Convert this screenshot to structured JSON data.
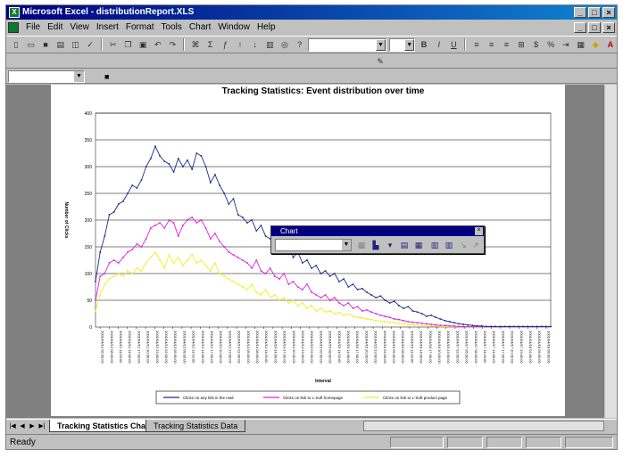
{
  "window": {
    "title": "Microsoft Excel - distributionReport.XLS",
    "controls": [
      "_",
      "□",
      "×"
    ]
  },
  "menu": {
    "items": [
      "File",
      "Edit",
      "View",
      "Insert",
      "Format",
      "Tools",
      "Chart",
      "Window",
      "Help"
    ],
    "doc_controls": [
      "_",
      "□",
      "×"
    ]
  },
  "chart_data": {
    "type": "line",
    "title": "Tracking Statistics: Event distribution over time",
    "xlabel": "Interval",
    "ylabel": "Number of Clicks",
    "ylim": [
      0,
      400
    ],
    "yticks": [
      0,
      50,
      100,
      150,
      200,
      250,
      300,
      350,
      400
    ],
    "grid": true,
    "legend_position": "bottom",
    "x_tick_labels": [
      "2001/04/12 05:00:00",
      "2001/04/12 08:00:00",
      "2001/04/12 11:00:00",
      "2001/04/12 14:00:00",
      "2001/04/12 17:00:00",
      "2001/04/12 20:00:00",
      "2001/04/12 23:00:00",
      "2001/04/13 02:00:00",
      "2001/04/13 05:00:00",
      "2001/04/13 08:00:00",
      "2001/04/13 11:00:00",
      "2001/04/13 14:00:00",
      "2001/04/13 17:00:00",
      "2001/04/13 20:00:00",
      "2001/04/13 23:00:00",
      "2001/04/14 02:00:00",
      "2001/04/14 05:00:00",
      "2001/04/14 08:00:00",
      "2001/04/14 11:00:00",
      "2001/04/14 14:00:00",
      "2001/04/14 17:00:00",
      "2001/04/14 20:00:00",
      "2001/04/14 23:00:00",
      "2001/04/15 02:00:00",
      "2001/04/15 05:00:00",
      "2001/04/15 08:00:00",
      "2001/04/15 11:00:00",
      "2001/04/15 14:00:00",
      "2001/04/15 17:00:00",
      "2001/04/15 20:00:00",
      "2001/04/15 23:00:00",
      "2001/04/16 02:00:00",
      "2001/04/16 05:00:00",
      "2001/04/16 08:00:00",
      "2001/04/16 11:00:00",
      "2001/04/16 14:00:00",
      "2001/04/16 17:00:00",
      "2001/04/16 20:00:00",
      "2001/04/16 23:00:00",
      "2001/04/17 02:00:00",
      "2001/04/17 05:00:00",
      "2001/04/17 08:00:00",
      "2001/04/17 11:00:00",
      "2001/04/17 14:00:00",
      "2001/04/17 17:00:00",
      "2001/04/17 20:00:00",
      "2001/04/17 23:00:00",
      "2001/04/18 02:00:00",
      "2001/04/18 05:00:00",
      "2001/04/18 08:00:00"
    ],
    "series": [
      {
        "name": "Clicks on any link in the mail",
        "color": "#1f2a8a",
        "values": [
          85,
          140,
          170,
          210,
          215,
          230,
          235,
          250,
          265,
          260,
          275,
          300,
          315,
          338,
          320,
          310,
          305,
          290,
          315,
          300,
          312,
          295,
          325,
          320,
          300,
          270,
          285,
          265,
          250,
          230,
          240,
          210,
          205,
          195,
          200,
          180,
          190,
          170,
          165,
          170,
          150,
          155,
          160,
          130,
          140,
          120,
          125,
          110,
          115,
          100,
          105,
          95,
          100,
          85,
          90,
          75,
          80,
          70,
          72,
          65,
          60,
          55,
          58,
          50,
          45,
          48,
          40,
          35,
          38,
          30,
          28,
          25,
          20,
          22,
          18,
          15,
          12,
          10,
          8,
          6,
          5,
          4,
          3,
          2,
          2,
          1,
          1,
          1,
          1,
          1,
          1,
          1,
          1,
          1,
          1,
          1,
          1,
          1,
          1,
          1
        ]
      },
      {
        "name": "Clicks on link to L-Soft homepage",
        "color": "#e020e0",
        "values": [
          50,
          95,
          100,
          120,
          125,
          120,
          130,
          140,
          145,
          155,
          150,
          165,
          185,
          190,
          195,
          185,
          200,
          195,
          170,
          190,
          200,
          205,
          195,
          200,
          185,
          165,
          175,
          160,
          150,
          140,
          135,
          130,
          125,
          120,
          110,
          125,
          105,
          100,
          110,
          95,
          90,
          100,
          80,
          85,
          75,
          70,
          80,
          65,
          60,
          55,
          60,
          50,
          55,
          45,
          40,
          45,
          35,
          38,
          30,
          32,
          28,
          25,
          22,
          20,
          18,
          15,
          14,
          12,
          10,
          9,
          8,
          7,
          6,
          5,
          4,
          3,
          3,
          2,
          2,
          1,
          1,
          1,
          1,
          1,
          1,
          1,
          1,
          1,
          1,
          1,
          1,
          1,
          1,
          1,
          1,
          1,
          1,
          1,
          1,
          1
        ]
      },
      {
        "name": "Clicks on link to L-Soft product page",
        "color": "#f0f020",
        "values": [
          30,
          60,
          80,
          90,
          95,
          100,
          95,
          105,
          100,
          110,
          105,
          120,
          130,
          140,
          125,
          110,
          135,
          120,
          130,
          115,
          125,
          135,
          120,
          125,
          115,
          105,
          120,
          100,
          95,
          90,
          85,
          80,
          75,
          70,
          80,
          65,
          60,
          70,
          55,
          60,
          50,
          55,
          45,
          50,
          40,
          45,
          35,
          40,
          30,
          35,
          28,
          30,
          25,
          27,
          22,
          24,
          20,
          18,
          17,
          15,
          14,
          12,
          11,
          10,
          9,
          8,
          7,
          6,
          5,
          4,
          4,
          3,
          3,
          2,
          2,
          1,
          1,
          1,
          1,
          1,
          1,
          1,
          1,
          1,
          1,
          1,
          1,
          1,
          1,
          1,
          1,
          1,
          1,
          1,
          1,
          1,
          1,
          1,
          1,
          1
        ]
      }
    ]
  },
  "floating_toolbar": {
    "title": "Chart"
  },
  "sheets": {
    "tabs": [
      "Tracking Statistics Chart",
      "Tracking Statistics Data"
    ],
    "active": 0
  },
  "status": {
    "text": "Ready"
  }
}
